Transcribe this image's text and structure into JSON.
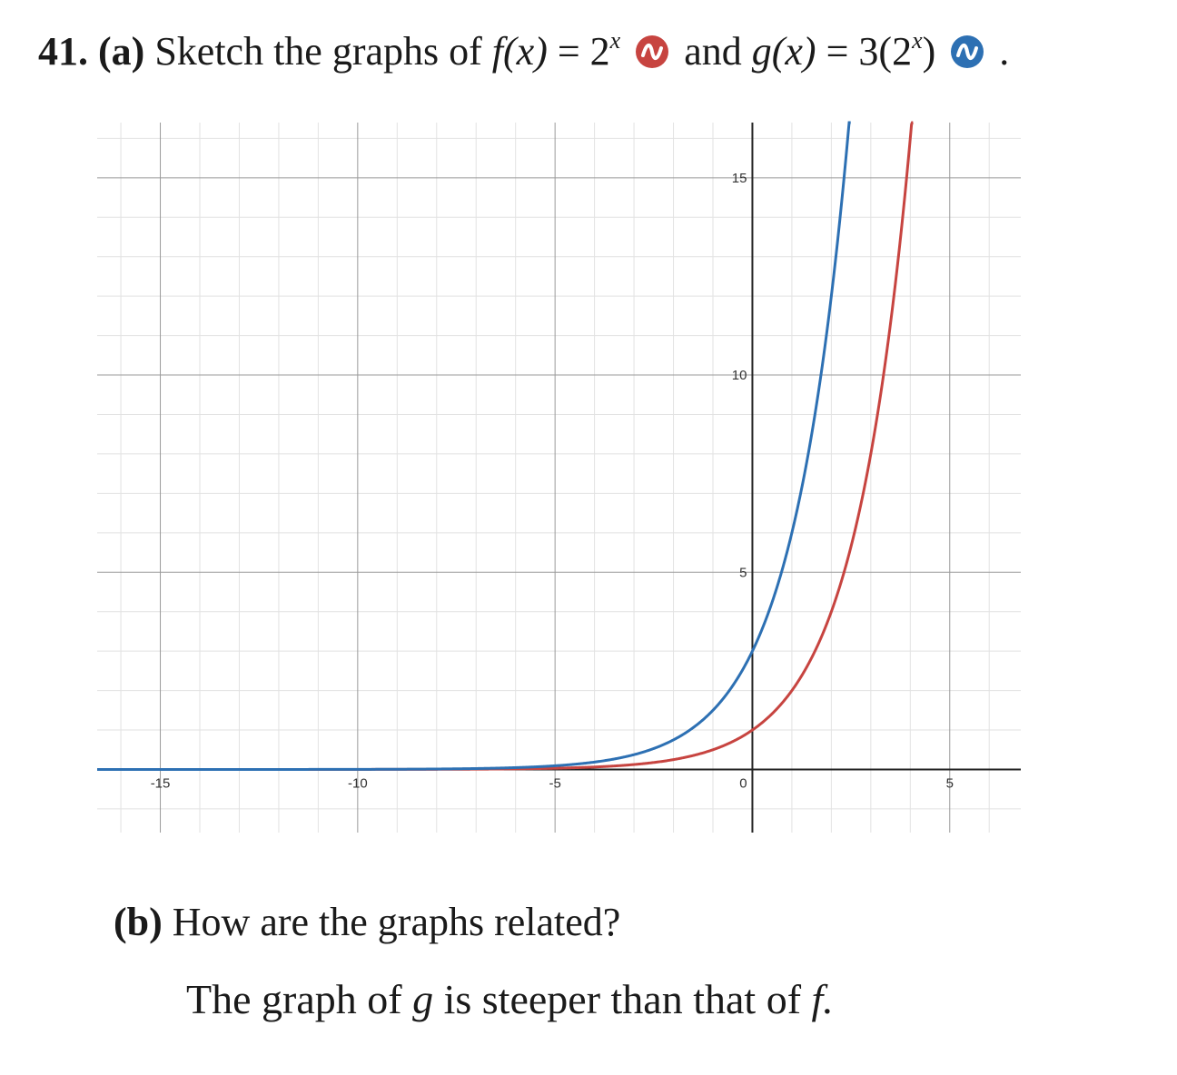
{
  "question": {
    "number": "41.",
    "part_a_label": "(a)",
    "part_a_text": "Sketch the graphs of",
    "f_expr": "f(x)",
    "f_rhs_base": "2",
    "f_rhs_exp": "x",
    "connector": "and",
    "g_expr": "g(x)",
    "g_rhs_prefix": "3(2",
    "g_rhs_exp": "x",
    "g_rhs_suffix": ")",
    "period": ".",
    "equals": "=",
    "part_b_label": "(b)",
    "part_b_text": "How are the graphs related?",
    "answer_start": "The graph of",
    "answer_g": "g",
    "answer_middle": "is steeper",
    "answer_end": "than that of",
    "answer_f": "f."
  },
  "colors": {
    "f": "#c74440",
    "g": "#2d70b3"
  },
  "icons": {
    "f": "desmos-wave-icon-red",
    "g": "desmos-wave-icon-blue"
  },
  "chart_data": {
    "type": "line",
    "xlim": [
      -16.6,
      6.8
    ],
    "ylim": [
      -1.6,
      16.4
    ],
    "grid": true,
    "x_ticks": [
      -15,
      -10,
      -5,
      0,
      5
    ],
    "y_ticks": [
      5,
      10,
      15
    ],
    "x_tick_labels": [
      "-15",
      "-10",
      "-5",
      "0",
      "5"
    ],
    "y_tick_labels": [
      "5",
      "10",
      "15"
    ],
    "series": [
      {
        "name": "f(x) = 2^x",
        "formula": "2^x",
        "color": "#c74440"
      },
      {
        "name": "g(x) = 3(2^x)",
        "formula": "3*2^x",
        "color": "#2d70b3"
      }
    ]
  }
}
